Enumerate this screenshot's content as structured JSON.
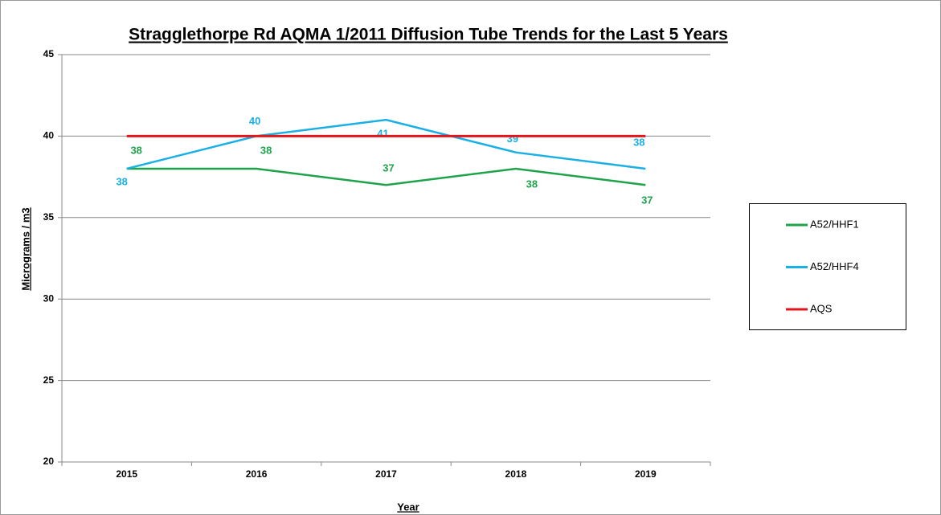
{
  "chart_data": {
    "type": "line",
    "title": "Stragglethorpe Rd AQMA 1/2011 Diffusion Tube Trends for the Last 5 Years",
    "x_label": "Year",
    "y_label": "Micrograms / m3",
    "categories": [
      "2015",
      "2016",
      "2017",
      "2018",
      "2019"
    ],
    "series": [
      {
        "name": "A52/HHF1",
        "color": "#1fa34a",
        "values": [
          38,
          38,
          37,
          38,
          37
        ],
        "data_labels": true
      },
      {
        "name": "A52/HHF4",
        "color": "#1ab0e6",
        "values": [
          38,
          40,
          41,
          39,
          38
        ],
        "data_labels": true
      },
      {
        "name": "AQS",
        "color": "#e3151a",
        "values": [
          40,
          40,
          40,
          40,
          40
        ],
        "data_labels": false
      }
    ],
    "ylim": [
      20,
      45
    ],
    "yticks": [
      20,
      25,
      30,
      35,
      40,
      45
    ],
    "grid": true,
    "legend": "right"
  }
}
